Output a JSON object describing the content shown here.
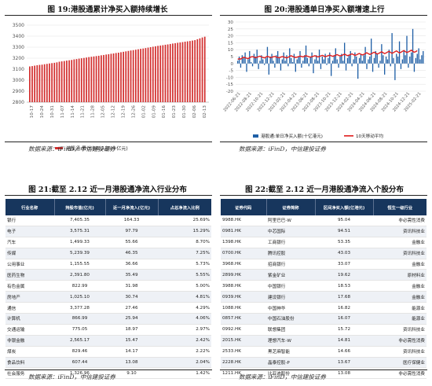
{
  "fig19": {
    "title": "图 19:港股通累计净买入额持续增长",
    "source": "数据来源：iFinD，中信建投证券",
    "legend": "港股通:累计净买入额(十亿元)",
    "yticks": [
      "2800",
      "2900",
      "3000",
      "3100",
      "3200",
      "3300",
      "3400",
      "3500"
    ],
    "xticks": [
      "10-17",
      "10-24",
      "10-31",
      "11-07",
      "11-14",
      "11-21",
      "11-28",
      "12-05",
      "12-12",
      "12-19",
      "12-26",
      "01-02",
      "01-09",
      "01-16",
      "01-23",
      "01-30",
      "02-06",
      "02-13"
    ]
  },
  "fig20": {
    "title": "图 20:港股通单日净买入额增速上行",
    "source": "数据来源：iFinD，中信建投证券",
    "legend_bar": "港股通:单日净买入额(十亿港元)",
    "legend_line": "10天移动平均",
    "yticks": [
      "-20",
      "-15",
      "-10",
      "-5",
      "0",
      "5",
      "10",
      "15",
      "20",
      "25",
      "30"
    ],
    "xticks": [
      "2022-06-21",
      "2022-08-21",
      "2022-10-21",
      "2022-12-21",
      "2023-02-21",
      "2023-04-21",
      "2023-06-21",
      "2023-08-21",
      "2023-10-21",
      "2023-12-21",
      "2024-02-21",
      "2024-04-21",
      "2024-06-21",
      "2024-08-21",
      "2024-10-21",
      "2024-12-21",
      "2025-02-21"
    ]
  },
  "fig21": {
    "title": "图 21:截至 2.12 近一月港股通净流入行业分布",
    "source": "数据来源：iFinD，中信建投证券",
    "headers": [
      "行业名称",
      "持股市值(亿元)",
      "近一月净流入(亿元)",
      "占总净流入比例"
    ],
    "rows": [
      [
        "银行",
        "7,405.35",
        "164.33",
        "25.69%"
      ],
      [
        "电子",
        "3,575.31",
        "97.79",
        "15.29%"
      ],
      [
        "汽车",
        "1,499.33",
        "55.66",
        "8.70%"
      ],
      [
        "传媒",
        "5,239.39",
        "46.35",
        "7.25%"
      ],
      [
        "公用事业",
        "1,155.55",
        "36.66",
        "5.73%"
      ],
      [
        "医药生物",
        "2,391.80",
        "35.49",
        "5.55%"
      ],
      [
        "有色金属",
        "822.99",
        "31.98",
        "5.00%"
      ],
      [
        "房地产",
        "1,025.10",
        "30.74",
        "4.81%"
      ],
      [
        "通信",
        "3,377.28",
        "27.46",
        "4.29%"
      ],
      [
        "计算机",
        "866.99",
        "25.94",
        "4.06%"
      ],
      [
        "交通运输",
        "775.05",
        "18.97",
        "2.97%"
      ],
      [
        "非银金融",
        "2,565.17",
        "15.47",
        "2.42%"
      ],
      [
        "煤炭",
        "829.46",
        "14.17",
        "2.22%"
      ],
      [
        "食品饮料",
        "607.44",
        "13.08",
        "2.04%"
      ],
      [
        "社会服务",
        "1,326.96",
        "9.10",
        "1.42%"
      ]
    ]
  },
  "fig22": {
    "title": "图 22:截至 2.12 近一月港股通净流入个股分布",
    "source": "数据来源：iFinD，中信建投证券",
    "headers": [
      "证券代码",
      "证券简称",
      "区间净买入额(亿港元)",
      "恒生一级行业"
    ],
    "rows": [
      [
        "9988.HK",
        "阿里巴巴-W",
        "95.04",
        "非必需性消费"
      ],
      [
        "0981.HK",
        "中芯国际",
        "94.51",
        "资讯科技业"
      ],
      [
        "1398.HK",
        "工商银行",
        "53.35",
        "金融业"
      ],
      [
        "0700.HK",
        "腾讯控股",
        "43.03",
        "资讯科技业"
      ],
      [
        "3968.HK",
        "招商银行",
        "33.07",
        "金融业"
      ],
      [
        "2899.HK",
        "紫金矿业",
        "19.62",
        "原材料业"
      ],
      [
        "3988.HK",
        "中国银行",
        "18.53",
        "金融业"
      ],
      [
        "0939.HK",
        "建设银行",
        "17.68",
        "金融业"
      ],
      [
        "1088.HK",
        "中国神华",
        "16.82",
        "能源业"
      ],
      [
        "0857.HK",
        "中国石油股份",
        "16.07",
        "能源业"
      ],
      [
        "0992.HK",
        "联想集团",
        "15.72",
        "资讯科技业"
      ],
      [
        "2015.HK",
        "理想汽车-W",
        "14.81",
        "非必需性消费"
      ],
      [
        "2533.HK",
        "黑芝麻智能",
        "14.66",
        "资讯科技业"
      ],
      [
        "2228.HK",
        "晶泰控股-P",
        "13.67",
        "医疗保健业"
      ],
      [
        "1211.HK",
        "比亚迪股份",
        "13.08",
        "非必需性消费"
      ]
    ]
  },
  "colors": {
    "dark_navy": "#17365d",
    "bar_red": "#d32f2f",
    "bar_blue": "#1f5fa6",
    "line_red": "#e01d1d"
  },
  "chart_data": [
    {
      "type": "bar",
      "title": "港股通累计净买入额持续增长",
      "series": [
        {
          "name": "港股通:累计净买入额(十亿元)",
          "values": [
            3125,
            3128,
            3132,
            3136,
            3139,
            3141,
            3145,
            3148,
            3152,
            3155,
            3158,
            3162,
            3168,
            3171,
            3174,
            3178,
            3181,
            3184,
            3189,
            3192,
            3196,
            3199,
            3202,
            3206,
            3210,
            3213,
            3216,
            3219,
            3222,
            3226,
            3229,
            3233,
            3236,
            3240,
            3243,
            3247,
            3250,
            3254,
            3258,
            3262,
            3266,
            3270,
            3273,
            3277,
            3281,
            3285,
            3288,
            3292,
            3296,
            3300,
            3304,
            3308,
            3312,
            3315,
            3318,
            3322,
            3325,
            3329,
            3333,
            3336,
            3340,
            3343,
            3346,
            3350,
            3353,
            3356,
            3360,
            3364,
            3372,
            3380,
            3388,
            3395
          ]
        }
      ],
      "categories_start": "10-17",
      "categories_end": "02-13",
      "ylim": [
        2800,
        3500
      ]
    },
    {
      "type": "bar",
      "title": "港股通单日净买入额增速上行",
      "series": [
        {
          "name": "港股通:单日净买入额(十亿港元)",
          "values": [
            2,
            5,
            -3,
            6,
            4,
            8,
            -6,
            3,
            9,
            1,
            -2,
            7,
            5,
            10,
            -4,
            2,
            6,
            3,
            -1,
            4,
            12,
            -8,
            5,
            7,
            2,
            -3,
            6,
            9,
            4,
            -5,
            3,
            8,
            2,
            6,
            -2,
            11,
            4,
            1,
            7,
            -6,
            3,
            5,
            9,
            -3,
            2,
            6,
            13,
            4,
            -2,
            5,
            8,
            -7,
            3,
            6,
            2,
            10,
            -4,
            5,
            3,
            7,
            -1,
            4,
            8,
            -9,
            2,
            6,
            11,
            3,
            -3,
            5,
            7,
            2,
            15,
            -5,
            4,
            6,
            9,
            -2,
            3,
            8,
            5,
            -11,
            4,
            7,
            2,
            6,
            12,
            -4,
            3,
            5,
            18,
            -6,
            4,
            9,
            7,
            -3,
            2,
            14,
            6,
            -8,
            5,
            3,
            10,
            -2,
            22,
            4,
            -12,
            7,
            5,
            16,
            -4,
            3,
            9,
            6,
            20,
            -3,
            5,
            8,
            25,
            -6,
            4,
            7,
            11,
            3,
            6,
            9
          ]
        },
        {
          "name": "10天移动平均",
          "values": [
            3,
            3.5,
            3.2,
            4,
            4.5,
            4.2,
            3.8,
            3.5,
            4.2,
            4.8,
            5,
            4.6,
            4.2,
            4.5,
            5,
            5.3,
            4.8,
            4.4,
            4.1,
            4.6,
            5.2,
            4.8,
            4.3,
            4.5,
            4.9,
            5.1,
            4.7,
            4.4,
            4.2,
            4.6,
            5,
            4.8,
            4.4,
            4.1,
            4.5,
            5.2,
            5.6,
            5.1,
            4.7,
            4.4,
            4.6,
            5,
            5.4,
            5.1,
            4.8,
            5.2,
            5.7,
            5.3,
            4.9,
            4.6,
            4.9,
            5.3,
            5.6,
            5.2,
            4.8,
            5.1,
            5.5,
            5.9,
            5.4,
            5,
            5.3,
            5.7,
            6.1,
            5.6,
            5.2,
            5.5,
            6,
            6.4,
            5.9,
            5.5,
            5.8,
            6.3,
            6.8,
            6.2,
            5.7,
            6,
            6.5,
            7,
            6.4,
            5.9,
            6.2,
            6.8,
            7.3,
            6.7,
            6.2,
            6.6,
            7.2,
            7.8,
            7.1,
            6.6,
            7,
            7.6,
            8.2,
            7.5,
            6.9,
            7.3,
            7.9,
            8.5,
            7.8,
            7.2,
            7.6,
            8.3,
            8.8,
            8,
            7.4,
            7.9,
            8.6,
            9.1,
            8.3,
            7.7,
            8.1,
            8.8,
            9.4,
            8.6,
            8,
            8.4,
            9,
            9.6,
            8.8,
            8.2,
            8.6,
            9.3
          ]
        }
      ],
      "ylim": [
        -20,
        30
      ]
    },
    {
      "type": "table",
      "title": "截至 2.12 近一月港股通净流入行业分布"
    },
    {
      "type": "table",
      "title": "截至 2.12 近一月港股通净流入个股分布"
    }
  ]
}
